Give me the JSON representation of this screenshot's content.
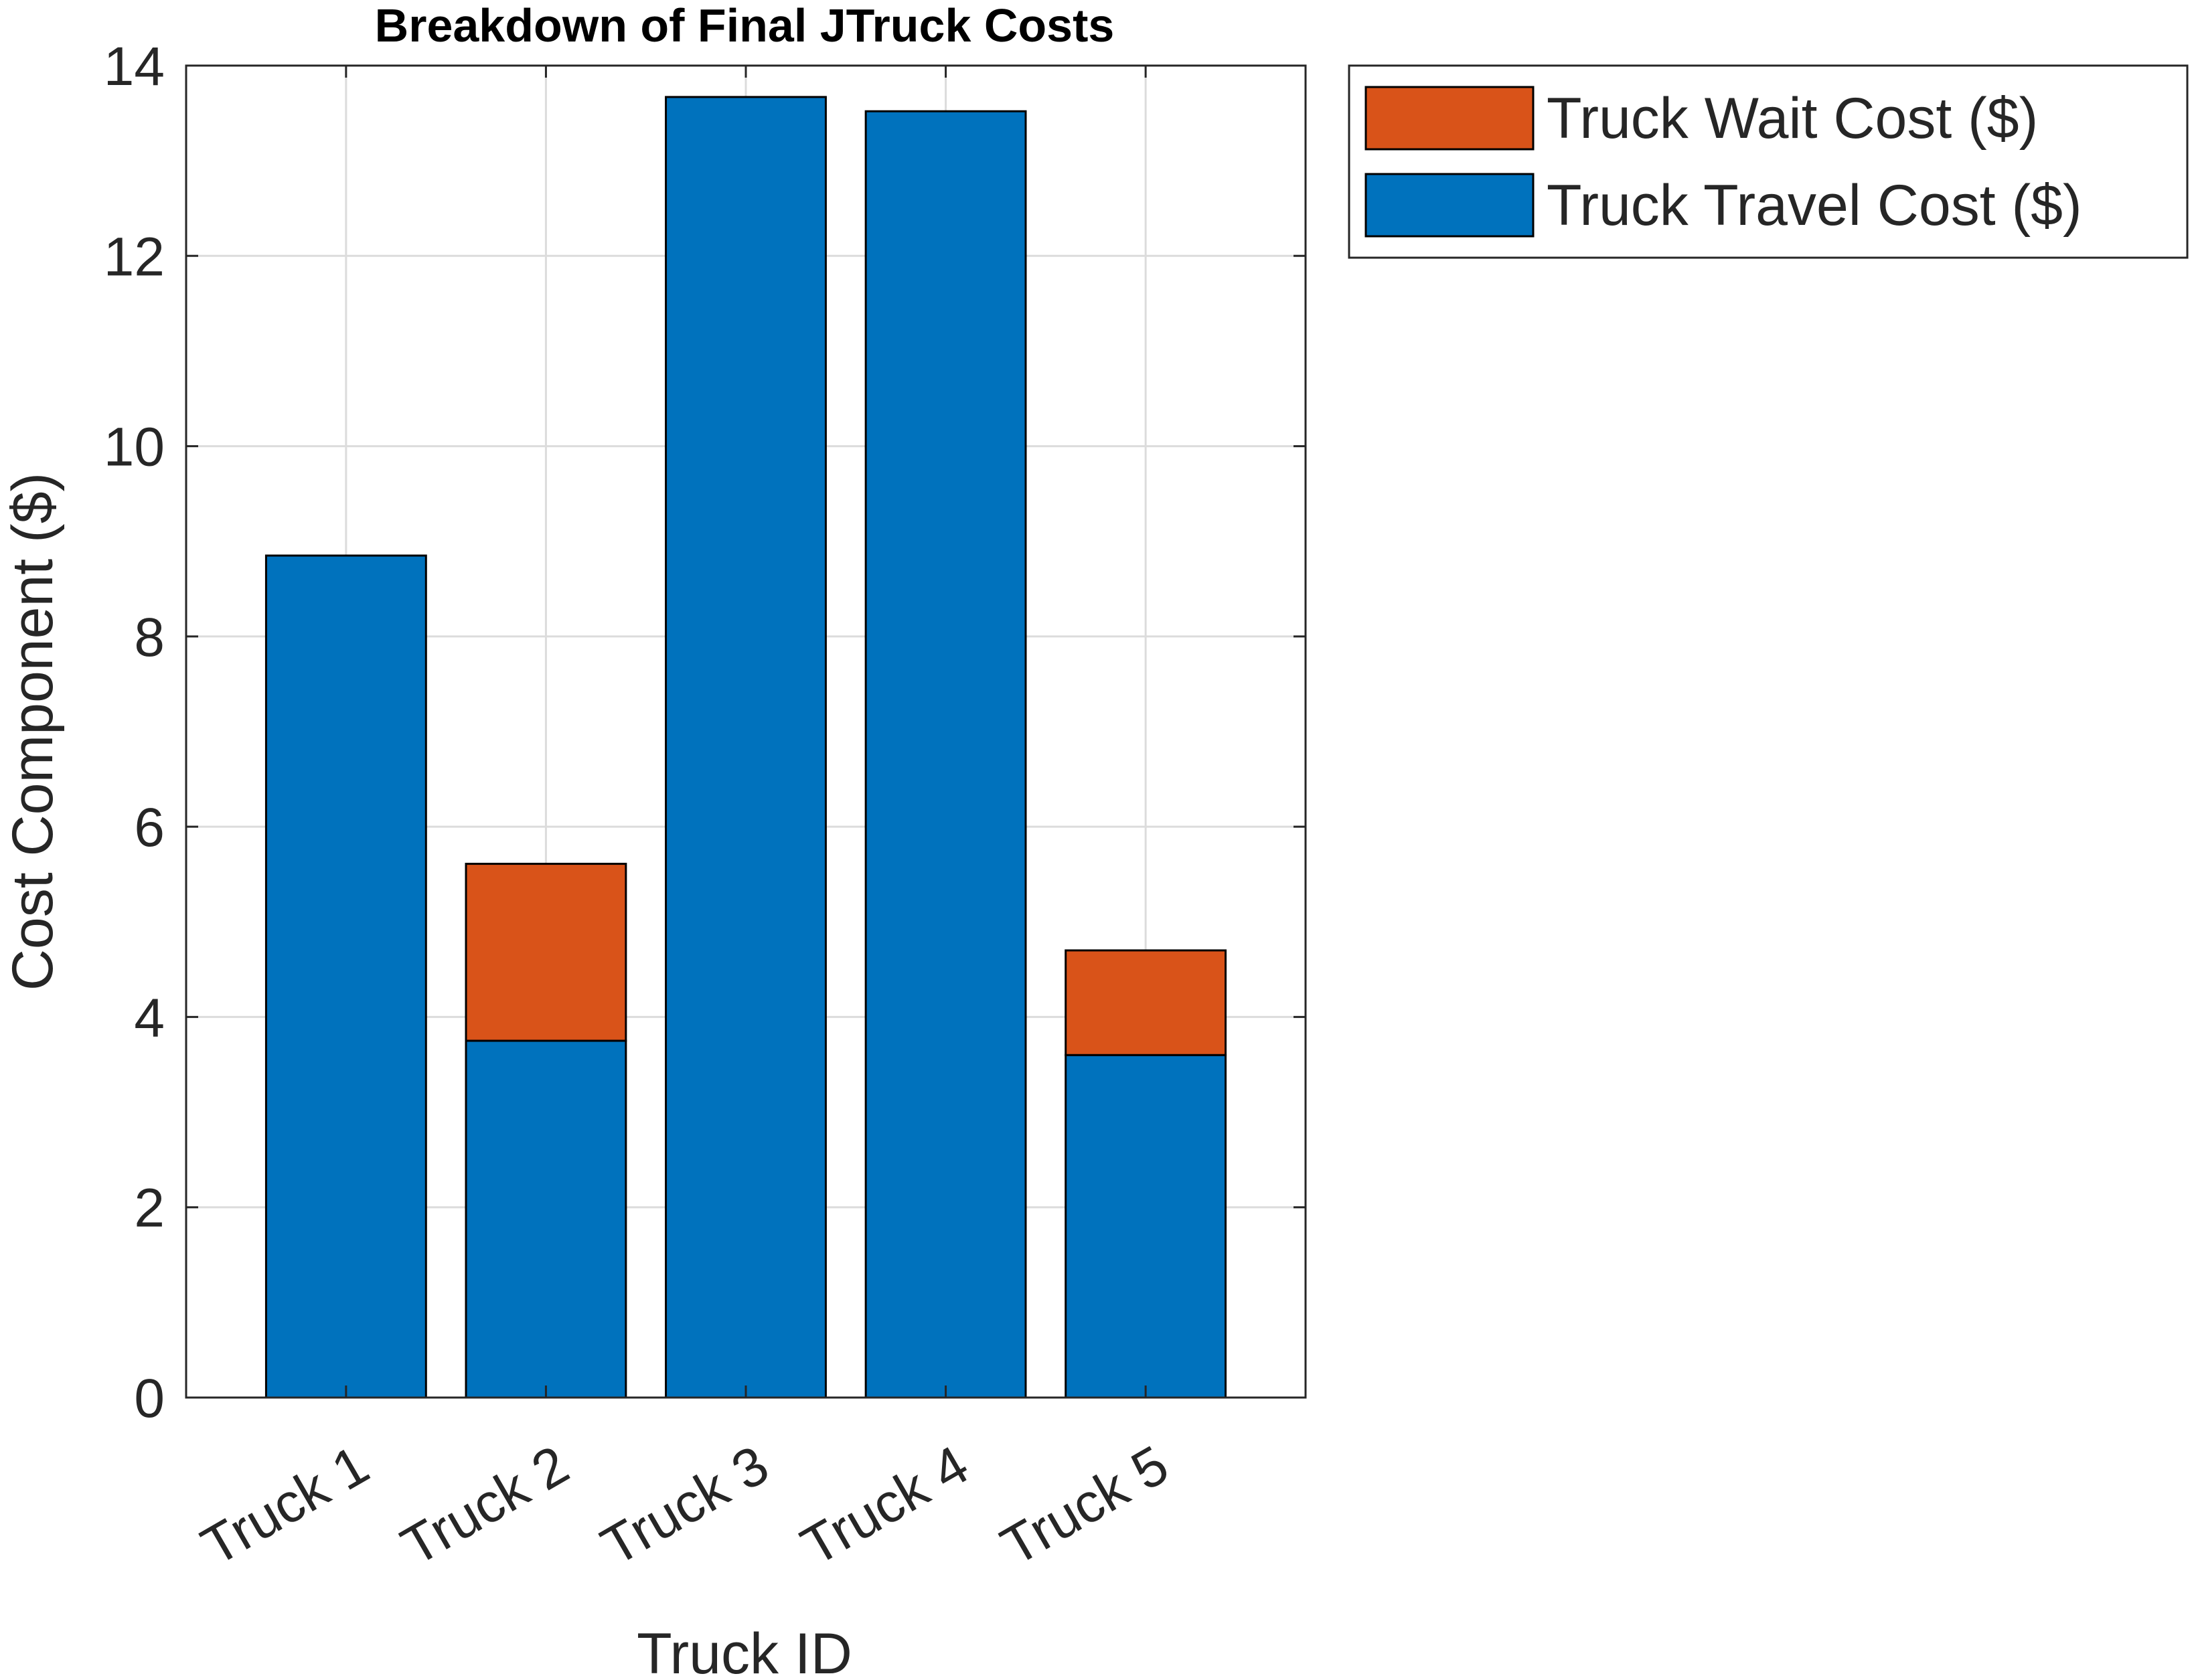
{
  "chart_data": {
    "type": "bar",
    "stacked": true,
    "title": "Breakdown of Final JTruck Costs",
    "xlabel": "Truck ID",
    "ylabel": "Cost Component ($)",
    "categories": [
      "Truck 1",
      "Truck 2",
      "Truck 3",
      "Truck 4",
      "Truck 5"
    ],
    "series": [
      {
        "name": "Truck Travel Cost ($)",
        "color": "#0072BD",
        "values": [
          8.85,
          3.75,
          13.67,
          13.52,
          3.6
        ]
      },
      {
        "name": "Truck Wait Cost ($)",
        "color": "#D95319",
        "values": [
          0,
          1.86,
          0,
          0,
          1.1
        ]
      }
    ],
    "ylim": [
      0,
      14
    ],
    "yticks": [
      "0",
      "2",
      "4",
      "6",
      "8",
      "10",
      "12",
      "14"
    ],
    "grid": true,
    "legend": {
      "placement": "outside-right-top",
      "entries": [
        "Truck Wait Cost ($)",
        "Truck Travel Cost ($)"
      ]
    }
  }
}
